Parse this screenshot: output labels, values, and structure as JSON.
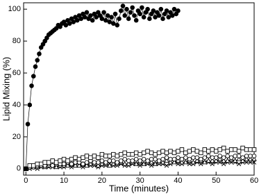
{
  "chart_data": {
    "type": "scatter-line",
    "xlabel": "Time (minutes)",
    "ylabel": "Lipid Mixing (%)",
    "xlim": [
      -0.6,
      60
    ],
    "ylim": [
      -4,
      104
    ],
    "xticks": [
      0,
      10,
      20,
      30,
      40,
      50,
      60
    ],
    "yticks": [
      0,
      20,
      40,
      60,
      80,
      100
    ],
    "series": [
      {
        "marker": "circle-filled",
        "color": "#000000",
        "x": [
          0,
          0.5,
          1,
          1.5,
          2,
          2.5,
          3,
          3.5,
          4,
          4.5,
          5,
          5.5,
          6,
          6.5,
          7,
          7.5,
          8,
          8.5,
          9,
          9.5,
          10,
          10.5,
          11,
          11.5,
          12,
          12.5,
          13,
          13.5,
          14,
          14.5,
          15,
          15.5,
          16,
          16.5,
          17,
          17.5,
          18,
          18.5,
          19,
          19.5,
          20,
          20.5,
          21,
          21.5,
          22,
          22.5,
          23,
          23.5,
          24,
          24.5,
          25,
          25.5,
          26,
          26.5,
          27,
          27.5,
          28,
          28.5,
          29,
          29.5,
          30,
          30.5,
          31,
          31.5,
          32,
          32.5,
          33,
          33.5,
          34,
          34.5,
          35,
          35.5,
          36,
          36.5,
          37,
          37.5,
          38,
          38.5,
          39,
          39.5,
          40
        ],
        "values": [
          0,
          28,
          40,
          52,
          58,
          64,
          68,
          72,
          76,
          78,
          80,
          82,
          84,
          85,
          86,
          87,
          88,
          90,
          89,
          91,
          92,
          90,
          93,
          91,
          94,
          92,
          95,
          93,
          96,
          94,
          97,
          95,
          98,
          94,
          96,
          93,
          97,
          95,
          98,
          96,
          94,
          98,
          93,
          96,
          92,
          95,
          91,
          97,
          90,
          94,
          99,
          102,
          96,
          100,
          94,
          98,
          101,
          96,
          93,
          99,
          97,
          101,
          95,
          98,
          100,
          94,
          97,
          99,
          95,
          98,
          96,
          100,
          94,
          97,
          99,
          95,
          98,
          96,
          100,
          97,
          99
        ]
      },
      {
        "marker": "square",
        "color": "#000000",
        "x": [
          0,
          1,
          2,
          3,
          4,
          5,
          6,
          7,
          8,
          9,
          10,
          11,
          12,
          13,
          14,
          15,
          16,
          17,
          18,
          19,
          20,
          21,
          22,
          23,
          24,
          25,
          26,
          27,
          28,
          29,
          30,
          31,
          32,
          33,
          34,
          35,
          36,
          37,
          38,
          39,
          40,
          41,
          42,
          43,
          44,
          45,
          46,
          47,
          48,
          49,
          50,
          51,
          52,
          53,
          54,
          55,
          56,
          57,
          58,
          59,
          60
        ],
        "values": [
          0,
          2,
          2,
          3,
          3,
          4,
          4,
          5,
          4,
          5,
          6,
          5,
          6,
          7,
          6,
          7,
          8,
          7,
          8,
          7,
          9,
          8,
          8,
          9,
          8,
          9,
          10,
          9,
          9,
          10,
          9,
          10,
          11,
          10,
          9,
          10,
          11,
          10,
          11,
          10,
          11,
          12,
          10,
          11,
          12,
          11,
          10,
          12,
          11,
          12,
          11,
          12,
          13,
          11,
          12,
          12,
          11,
          13,
          12,
          12,
          12
        ]
      },
      {
        "marker": "circle",
        "color": "#000000",
        "x": [
          0,
          1,
          2,
          3,
          4,
          5,
          6,
          7,
          8,
          9,
          10,
          11,
          12,
          13,
          14,
          15,
          16,
          17,
          18,
          19,
          20,
          21,
          22,
          23,
          24,
          25,
          26,
          27,
          28,
          29,
          30,
          31,
          32,
          33,
          34,
          35,
          36,
          37,
          38,
          39,
          40,
          41,
          42,
          43,
          44,
          45,
          46,
          47,
          48,
          49,
          50,
          51,
          52,
          53,
          54,
          55,
          56,
          57,
          58,
          59,
          60
        ],
        "values": [
          0,
          1,
          1,
          2,
          2,
          2,
          3,
          2,
          3,
          3,
          3,
          4,
          3,
          4,
          4,
          3,
          4,
          5,
          4,
          4,
          5,
          4,
          5,
          5,
          4,
          5,
          6,
          5,
          5,
          6,
          5,
          6,
          5,
          6,
          6,
          5,
          6,
          7,
          6,
          6,
          7,
          6,
          7,
          6,
          7,
          7,
          6,
          7,
          8,
          7,
          7,
          8,
          7,
          8,
          7,
          8,
          8,
          7,
          8,
          8,
          8
        ]
      },
      {
        "marker": "triangle",
        "color": "#000000",
        "x": [
          0,
          1,
          2,
          3,
          4,
          5,
          6,
          7,
          8,
          9,
          10,
          11,
          12,
          13,
          14,
          15,
          16,
          17,
          18,
          19,
          20,
          21,
          22,
          23,
          24,
          25,
          26,
          27,
          28,
          29,
          30,
          31,
          32,
          33,
          34,
          35,
          36,
          37,
          38,
          39,
          40,
          41,
          42,
          43,
          44,
          45,
          46,
          47,
          48,
          49,
          50,
          51,
          52,
          53,
          54,
          55,
          56,
          57,
          58,
          59,
          60
        ],
        "values": [
          0,
          1,
          1,
          1,
          2,
          1,
          2,
          2,
          1,
          2,
          2,
          2,
          3,
          2,
          2,
          3,
          2,
          3,
          3,
          2,
          3,
          3,
          2,
          3,
          3,
          4,
          3,
          3,
          4,
          3,
          4,
          3,
          4,
          4,
          3,
          4,
          4,
          5,
          4,
          4,
          5,
          4,
          4,
          5,
          4,
          5,
          5,
          4,
          5,
          5,
          5,
          6,
          5,
          5,
          6,
          5,
          6,
          5,
          6,
          6,
          6
        ]
      },
      {
        "marker": "cross",
        "color": "#000000",
        "x": [
          0,
          1,
          2,
          3,
          4,
          5,
          6,
          7,
          8,
          9,
          10,
          11,
          12,
          13,
          14,
          15,
          16,
          17,
          18,
          19,
          20,
          21,
          22,
          23,
          24,
          25,
          26,
          27,
          28,
          29,
          30,
          31,
          32,
          33,
          34,
          35,
          36,
          37,
          38,
          39,
          40,
          41,
          42,
          43,
          44,
          45,
          46,
          47,
          48,
          49,
          50,
          51,
          52,
          53,
          54,
          55,
          56,
          57,
          58,
          59,
          60
        ],
        "values": [
          0,
          0,
          1,
          0,
          1,
          1,
          1,
          1,
          2,
          1,
          1,
          2,
          1,
          2,
          2,
          1,
          2,
          2,
          2,
          1,
          2,
          2,
          3,
          2,
          2,
          3,
          2,
          2,
          3,
          3,
          2,
          3,
          3,
          2,
          3,
          3,
          3,
          2,
          3,
          4,
          3,
          3,
          4,
          3,
          3,
          4,
          3,
          4,
          4,
          3,
          4,
          4,
          3,
          4,
          4,
          4,
          3,
          4,
          4,
          4,
          4
        ]
      }
    ]
  }
}
